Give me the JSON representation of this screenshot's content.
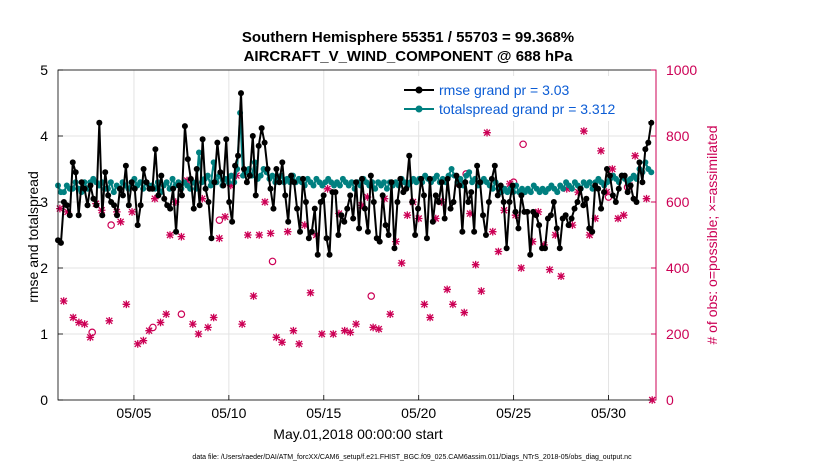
{
  "chart_data": {
    "type": "line",
    "title_line1": "Southern Hemisphere 55351 / 55703 = 99.368%",
    "title_line2": "AIRCRAFT_V_WIND_COMPONENT @ 688 hPa",
    "xlabel": "May.01,2018 00:00:00 start",
    "ylabel_left": "rmse and totalspread",
    "ylabel_right": "# of obs: o=possible; ×=assimilated",
    "footnote": "data file: /Users/raeder/DAI/ATM_forcXX/CAM6_setup/f.e21.FHIST_BGC.f09_025.CAM6assim.011/Diags_NTrS_2018-05/obs_diag_output.nc",
    "xlim": [
      1,
      32.5
    ],
    "ylim_left": [
      0,
      5
    ],
    "ylim_right": [
      0,
      1000
    ],
    "x_ticks": [
      5,
      10,
      15,
      20,
      25,
      30
    ],
    "x_tick_labels": [
      "05/05",
      "05/10",
      "05/15",
      "05/20",
      "05/25",
      "05/30"
    ],
    "y_left_ticks": [
      "0",
      "1",
      "2",
      "3",
      "4",
      "5"
    ],
    "y_right_ticks": [
      "0",
      "200",
      "400",
      "600",
      "800",
      "1000"
    ],
    "colors": {
      "rmse": "#000000",
      "spread": "#008080",
      "obs": "#cc0055",
      "legend_text": "#0b5cd5",
      "grid": "#e3e3e3"
    },
    "series": [
      {
        "name": "rmse",
        "legend": "rmse grand pr = 3.03",
        "values": [
          2.42,
          2.38,
          3.0,
          2.95,
          2.8,
          3.6,
          3.45,
          2.8,
          3.3,
          3.2,
          2.95,
          3.25,
          3.05,
          2.95,
          4.2,
          2.8,
          3.45,
          3.1,
          3.0,
          2.95,
          2.8,
          3.2,
          3.1,
          3.55,
          2.95,
          3.3,
          3.2,
          2.65,
          2.95,
          3.5,
          3.3,
          3.2,
          3.2,
          3.8,
          3.1,
          3.4,
          3.05,
          2.95,
          2.9,
          3.2,
          2.55,
          3.25,
          3.1,
          4.15,
          3.65,
          3.35,
          2.9,
          3.5,
          2.95,
          3.95,
          3.2,
          3.0,
          2.45,
          3.3,
          3.9,
          3.45,
          3.25,
          3.95,
          3.0,
          2.7,
          3.55,
          3.7,
          4.65,
          3.5,
          3.3,
          3.4,
          4.0,
          3.1,
          3.85,
          4.12,
          3.9,
          3.5,
          3.2,
          2.9,
          3.5,
          3.3,
          3.6,
          3.1,
          2.7,
          3.4,
          3.3,
          2.9,
          2.55,
          3.35,
          3.0,
          2.45,
          2.55,
          2.9,
          2.2,
          3.0,
          3.1,
          2.45,
          2.2,
          3.15,
          3.15,
          2.5,
          2.8,
          2.7,
          2.9,
          3.1,
          2.75,
          3.3,
          2.6,
          3.35,
          2.9,
          2.55,
          3.4,
          3.0,
          2.45,
          2.4,
          3.1,
          2.65,
          2.5,
          3.3,
          2.3,
          3.0,
          3.35,
          3.15,
          3.2,
          3.7,
          3.0,
          2.5,
          2.9,
          3.35,
          3.1,
          2.45,
          3.35,
          2.7,
          3.1,
          3.0,
          3.3,
          2.75,
          3.35,
          2.9,
          3.0,
          3.4,
          3.25,
          2.55,
          3.3,
          3.0,
          3.15,
          2.55,
          3.55,
          3.3,
          2.8,
          2.5,
          3.0,
          3.35,
          3.55,
          3.1,
          3.25,
          3.0,
          2.3,
          3.0,
          3.25,
          2.85,
          2.6,
          3.1,
          2.85,
          2.85,
          2.2,
          2.85,
          2.8,
          2.65,
          2.3,
          2.3,
          2.75,
          2.8,
          3.0,
          2.6,
          2.3,
          2.75,
          2.8,
          2.65,
          2.75,
          2.9,
          3.0,
          3.2,
          2.95,
          3.05,
          2.6,
          2.55,
          3.25,
          3.2,
          2.9,
          3.15,
          3.5,
          3.4,
          3.1,
          3.0,
          3.2,
          3.4,
          3.4,
          3.15,
          3.25,
          3.05,
          3.0,
          3.6,
          3.3,
          3.8,
          3.9,
          4.2
        ]
      },
      {
        "name": "totalspread",
        "legend": "totalspread grand pr = 3.312",
        "values": [
          3.25,
          3.15,
          3.15,
          3.25,
          3.2,
          3.2,
          3.3,
          3.2,
          3.15,
          3.3,
          3.2,
          3.3,
          3.35,
          3.3,
          3.25,
          3.3,
          3.2,
          3.2,
          3.3,
          3.15,
          3.25,
          3.2,
          3.3,
          3.25,
          3.2,
          3.3,
          3.35,
          3.25,
          3.3,
          3.2,
          3.3,
          3.25,
          3.25,
          3.2,
          3.3,
          3.15,
          3.25,
          3.3,
          3.2,
          3.35,
          3.25,
          3.3,
          3.2,
          3.3,
          3.25,
          3.2,
          3.3,
          3.2,
          3.75,
          3.3,
          3.35,
          3.4,
          3.25,
          3.6,
          3.3,
          3.4,
          3.25,
          3.35,
          3.3,
          3.4,
          3.3,
          3.5,
          4.35,
          3.4,
          3.45,
          3.5,
          3.4,
          3.6,
          3.35,
          3.4,
          3.5,
          3.45,
          3.35,
          3.4,
          3.3,
          3.35,
          3.4,
          3.3,
          3.35,
          3.3,
          3.4,
          3.3,
          3.35,
          3.3,
          3.25,
          3.35,
          3.3,
          3.25,
          3.35,
          3.3,
          3.25,
          3.3,
          3.35,
          3.3,
          3.25,
          3.3,
          3.25,
          3.35,
          3.3,
          3.25,
          3.3,
          3.2,
          3.3,
          3.25,
          3.35,
          3.3,
          3.25,
          3.3,
          3.2,
          3.3,
          3.25,
          3.3,
          3.2,
          3.3,
          3.25,
          3.3,
          3.25,
          3.35,
          3.3,
          3.25,
          3.3,
          3.35,
          3.3,
          3.35,
          3.3,
          3.4,
          3.35,
          3.3,
          3.35,
          3.4,
          3.3,
          3.35,
          3.3,
          3.4,
          3.5,
          3.4,
          3.3,
          3.35,
          3.25,
          3.4,
          3.45,
          3.3,
          3.35,
          3.25,
          3.3,
          3.35,
          3.3,
          3.25,
          3.2,
          3.3,
          3.2,
          3.15,
          3.2,
          3.15,
          3.2,
          3.15,
          3.25,
          3.15,
          3.2,
          3.15,
          3.2,
          3.15,
          3.25,
          3.2,
          3.15,
          3.2,
          3.15,
          3.2,
          3.25,
          3.2,
          3.15,
          3.25,
          3.2,
          3.3,
          3.25,
          3.2,
          3.3,
          3.25,
          3.2,
          3.3,
          3.25,
          3.3,
          3.2,
          3.3,
          3.35,
          3.3,
          3.25,
          3.3,
          3.35,
          3.4,
          3.35,
          3.3,
          3.4,
          3.35,
          3.3,
          3.35,
          3.4,
          3.35,
          3.5,
          3.45,
          3.6,
          3.5,
          3.45
        ]
      },
      {
        "name": "obs_possible",
        "marker": "o",
        "axis": "right",
        "x": [
          2.8,
          3.8,
          6.0,
          7.5,
          9.5,
          12.3,
          17.5,
          22.5,
          25.0,
          30.0,
          31.0,
          25.5
        ],
        "values": [
          205,
          530,
          220,
          260,
          545,
          420,
          315,
          685,
          660,
          615,
          645,
          775
        ]
      },
      {
        "name": "obs_assimilated",
        "marker": "x",
        "axis": "right",
        "x": [
          1.1,
          1.3,
          1.5,
          1.8,
          2.1,
          2.4,
          2.7,
          3.0,
          3.3,
          3.7,
          4.1,
          4.3,
          4.6,
          4.9,
          5.2,
          5.5,
          5.8,
          6.1,
          6.4,
          6.7,
          6.9,
          7.2,
          7.5,
          7.8,
          8.1,
          8.4,
          8.6,
          8.9,
          9.2,
          9.5,
          9.8,
          10.1,
          10.4,
          10.7,
          11.0,
          11.3,
          11.6,
          11.9,
          12.2,
          12.5,
          12.8,
          13.1,
          13.4,
          13.7,
          14.0,
          14.3,
          14.6,
          14.9,
          15.2,
          15.5,
          15.8,
          16.1,
          16.4,
          16.7,
          17.0,
          17.3,
          17.6,
          17.9,
          18.2,
          18.5,
          18.8,
          19.1,
          19.4,
          19.7,
          20.0,
          20.3,
          20.6,
          20.9,
          21.2,
          21.5,
          21.8,
          22.1,
          22.4,
          22.7,
          23.0,
          23.3,
          23.6,
          23.9,
          24.2,
          24.5,
          24.8,
          25.1,
          25.4,
          25.7,
          26.0,
          26.3,
          26.6,
          26.9,
          27.2,
          27.5,
          27.8,
          28.1,
          28.4,
          28.7,
          29.0,
          29.3,
          29.6,
          29.9,
          30.2,
          30.5,
          30.8,
          31.1,
          31.4,
          31.7,
          32.0,
          32.3
        ],
        "values": [
          580,
          300,
          570,
          250,
          235,
          230,
          190,
          595,
          575,
          240,
          570,
          540,
          290,
          570,
          170,
          180,
          210,
          610,
          235,
          260,
          500,
          600,
          495,
          665,
          230,
          200,
          610,
          220,
          250,
          490,
          555,
          650,
          680,
          230,
          500,
          315,
          500,
          600,
          505,
          190,
          175,
          510,
          210,
          170,
          530,
          325,
          500,
          200,
          640,
          200,
          565,
          210,
          205,
          230,
          590,
          615,
          220,
          215,
          610,
          260,
          480,
          415,
          560,
          600,
          550,
          290,
          250,
          550,
          600,
          335,
          290,
          655,
          265,
          565,
          410,
          330,
          810,
          510,
          450,
          575,
          655,
          560,
          400,
          865,
          480,
          570,
          470,
          395,
          500,
          375,
          640,
          530,
          630,
          815,
          500,
          550,
          755,
          630,
          700,
          550,
          560,
          650,
          740,
          860,
          610,
          0
        ]
      }
    ]
  }
}
